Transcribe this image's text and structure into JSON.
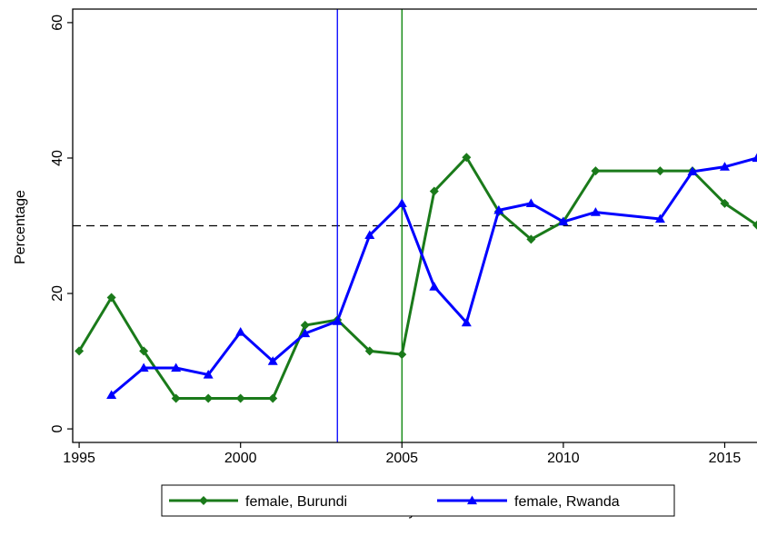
{
  "chart_data": {
    "type": "line",
    "xlabel": "year",
    "ylabel": "Percentage",
    "xlim": [
      1994.8,
      2016
    ],
    "ylim": [
      -2,
      62
    ],
    "x_ticks": [
      1995,
      2000,
      2005,
      2010,
      2015
    ],
    "y_ticks": [
      0,
      20,
      40,
      60
    ],
    "grid": false,
    "reference_lines": {
      "horizontal": [
        {
          "y": 30,
          "style": "dashed",
          "color": "#000000"
        }
      ],
      "vertical": [
        {
          "x": 2003,
          "color": "#0000ff"
        },
        {
          "x": 2005,
          "color": "#008000"
        }
      ]
    },
    "series": [
      {
        "name": "female, Burundi",
        "color": "#1a7a1a",
        "marker": "diamond",
        "x": [
          1995,
          1996,
          1997,
          1998,
          1999,
          2000,
          2001,
          2002,
          2003,
          2004,
          2005,
          2006,
          2007,
          2008,
          2009,
          2010,
          2011,
          2013,
          2014,
          2015,
          2016
        ],
        "y": [
          11.5,
          19.4,
          11.5,
          4.5,
          4.5,
          4.5,
          4.5,
          15.3,
          16.1,
          11.5,
          11.0,
          35.1,
          40.1,
          32.1,
          28.0,
          30.6,
          38.1,
          38.1,
          38.1,
          33.3,
          30.1
        ]
      },
      {
        "name": "female, Rwanda",
        "color": "#0000ff",
        "marker": "triangle",
        "x": [
          1996,
          1997,
          1998,
          1999,
          2000,
          2001,
          2002,
          2003,
          2004,
          2005,
          2006,
          2007,
          2008,
          2009,
          2010,
          2011,
          2013,
          2014,
          2015,
          2016
        ],
        "y": [
          5.0,
          9.0,
          9.0,
          8.0,
          14.3,
          10.0,
          14.1,
          15.9,
          28.6,
          33.3,
          21.0,
          15.7,
          32.3,
          33.3,
          30.6,
          32.0,
          31.0,
          38.0,
          38.7,
          40.0
        ]
      }
    ]
  }
}
